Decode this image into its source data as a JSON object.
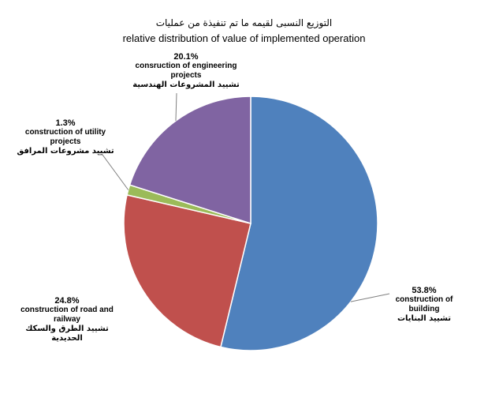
{
  "chart_data": {
    "type": "pie",
    "title_ar": "التوزيع النسبى لقيمه ما تم تنفيذة من عمليات",
    "title": "relative distribution of value of implemented operation",
    "start_angle_deg": 0,
    "direction": "clockwise",
    "slices": [
      {
        "label_en": "construction of building",
        "label_ar": "تشييد البنايات",
        "value": 53.8,
        "pct_label": "53.8%",
        "color": "#4f81bd"
      },
      {
        "label_en": "construction of road and railway",
        "label_ar": "تشييد الطرق والسكك الحديدية",
        "value": 24.8,
        "pct_label": "24.8%",
        "color": "#c0504d"
      },
      {
        "label_en": "construction of utility projects",
        "label_ar": "تشييد مشروعات المرافق",
        "value": 1.3,
        "pct_label": "1.3%",
        "color": "#9bbb59"
      },
      {
        "label_en": "consruction of engineering projects",
        "label_ar": "تشييد المشروعات الهندسية",
        "value": 20.1,
        "pct_label": "20.1%",
        "color": "#8064a2"
      }
    ],
    "leader_color": "#7f7f7f",
    "legend": "none"
  }
}
